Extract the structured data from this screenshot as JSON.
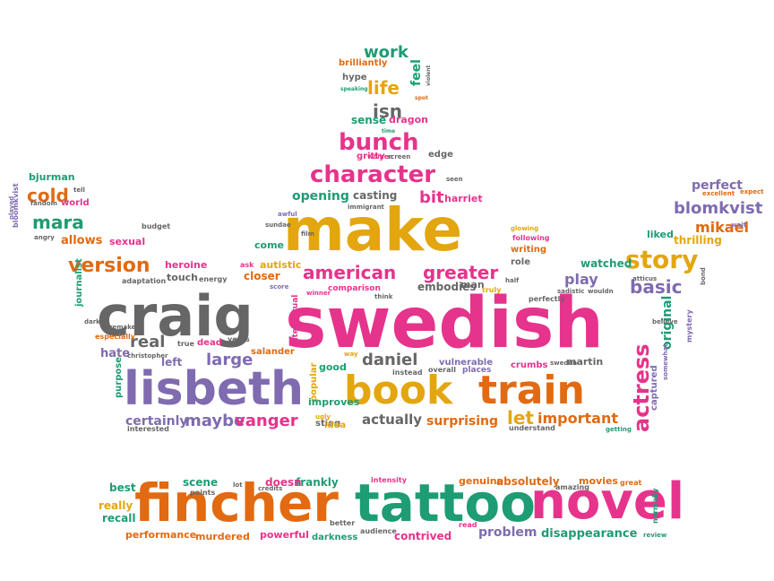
{
  "colors": {
    "pink": "#e6338c",
    "gold": "#e3a60f",
    "gray": "#666666",
    "purple": "#7f6bb0",
    "orange": "#e16a12",
    "teal": "#1e9c74",
    "background": "#ffffff"
  },
  "words": [
    {
      "text": "swedish",
      "color": "pink"
    },
    {
      "text": "craig",
      "color": "gray"
    },
    {
      "text": "make",
      "color": "gold"
    },
    {
      "text": "fincher",
      "color": "orange"
    },
    {
      "text": "tattoo",
      "color": "teal"
    },
    {
      "text": "novel",
      "color": "pink"
    },
    {
      "text": "book",
      "color": "gold"
    },
    {
      "text": "train",
      "color": "orange"
    },
    {
      "text": "lisbeth",
      "color": "purple"
    },
    {
      "text": "character",
      "color": "pink"
    },
    {
      "text": "bunch",
      "color": "pink"
    },
    {
      "text": "american",
      "color": "pink"
    },
    {
      "text": "greater",
      "color": "pink"
    },
    {
      "text": "version",
      "color": "orange"
    },
    {
      "text": "story",
      "color": "gold"
    },
    {
      "text": "actress",
      "color": "pink"
    },
    {
      "text": "basic",
      "color": "purple"
    },
    {
      "text": "blomkvist",
      "color": "purple"
    },
    {
      "text": "mikael",
      "color": "orange"
    },
    {
      "text": "cold",
      "color": "orange"
    },
    {
      "text": "mara",
      "color": "teal"
    },
    {
      "text": "work",
      "color": "teal"
    },
    {
      "text": "life",
      "color": "gold"
    },
    {
      "text": "isn",
      "color": "gray"
    },
    {
      "text": "bit",
      "color": "pink"
    },
    {
      "text": "opening",
      "color": "teal"
    },
    {
      "text": "casting",
      "color": "gray"
    },
    {
      "text": "daniel",
      "color": "gray"
    },
    {
      "text": "real",
      "color": "gray"
    },
    {
      "text": "large",
      "color": "purple"
    },
    {
      "text": "maybe",
      "color": "purple"
    },
    {
      "text": "vanger",
      "color": "pink"
    },
    {
      "text": "certainly",
      "color": "purple"
    },
    {
      "text": "actually",
      "color": "gray"
    },
    {
      "text": "surprising",
      "color": "orange"
    },
    {
      "text": "let",
      "color": "gold"
    },
    {
      "text": "important",
      "color": "orange"
    },
    {
      "text": "original",
      "color": "teal"
    },
    {
      "text": "play",
      "color": "purple"
    },
    {
      "text": "watched",
      "color": "teal"
    },
    {
      "text": "perfect",
      "color": "purple"
    },
    {
      "text": "liked",
      "color": "teal"
    },
    {
      "text": "thrilling",
      "color": "gold"
    },
    {
      "text": "scene",
      "color": "teal"
    },
    {
      "text": "frankly",
      "color": "teal"
    },
    {
      "text": "doesn",
      "color": "pink"
    },
    {
      "text": "absolutely",
      "color": "orange"
    },
    {
      "text": "genuine",
      "color": "orange"
    },
    {
      "text": "movies",
      "color": "orange"
    },
    {
      "text": "best",
      "color": "teal"
    },
    {
      "text": "really",
      "color": "gold"
    },
    {
      "text": "recall",
      "color": "teal"
    },
    {
      "text": "performance",
      "color": "orange"
    },
    {
      "text": "murdered",
      "color": "orange"
    },
    {
      "text": "powerful",
      "color": "pink"
    },
    {
      "text": "darkness",
      "color": "teal"
    },
    {
      "text": "contrived",
      "color": "pink"
    },
    {
      "text": "problem",
      "color": "purple"
    },
    {
      "text": "disappearance",
      "color": "teal"
    },
    {
      "text": "allows",
      "color": "orange"
    },
    {
      "text": "sexual",
      "color": "pink"
    },
    {
      "text": "bjurman",
      "color": "teal"
    },
    {
      "text": "world",
      "color": "pink"
    },
    {
      "text": "brilliantly",
      "color": "orange"
    },
    {
      "text": "hype",
      "color": "gray"
    },
    {
      "text": "feel",
      "color": "teal"
    },
    {
      "text": "sense",
      "color": "teal"
    },
    {
      "text": "dragon",
      "color": "pink"
    },
    {
      "text": "edge",
      "color": "gray"
    },
    {
      "text": "gritty",
      "color": "pink"
    },
    {
      "text": "harriet",
      "color": "pink"
    },
    {
      "text": "autistic",
      "color": "gold"
    },
    {
      "text": "come",
      "color": "teal"
    },
    {
      "text": "closer",
      "color": "orange"
    },
    {
      "text": "heroine",
      "color": "pink"
    },
    {
      "text": "touch",
      "color": "gray"
    },
    {
      "text": "embodies",
      "color": "gray"
    },
    {
      "text": "man",
      "color": "gray"
    },
    {
      "text": "writing",
      "color": "orange"
    },
    {
      "text": "role",
      "color": "gray"
    },
    {
      "text": "comparison",
      "color": "pink"
    },
    {
      "text": "vulnerable",
      "color": "purple"
    },
    {
      "text": "places",
      "color": "purple"
    },
    {
      "text": "crumbs",
      "color": "pink"
    },
    {
      "text": "martin",
      "color": "gray"
    },
    {
      "text": "good",
      "color": "teal"
    },
    {
      "text": "hate",
      "color": "purple"
    },
    {
      "text": "left",
      "color": "purple"
    },
    {
      "text": "dead",
      "color": "pink"
    },
    {
      "text": "journalist",
      "color": "teal"
    },
    {
      "text": "salander",
      "color": "orange"
    },
    {
      "text": "popular",
      "color": "gold"
    },
    {
      "text": "improves",
      "color": "teal"
    },
    {
      "text": "stieg",
      "color": "gray"
    },
    {
      "text": "idea",
      "color": "gold"
    },
    {
      "text": "captured",
      "color": "purple"
    },
    {
      "text": "intellectual",
      "color": "pink"
    },
    {
      "text": "purpose",
      "color": "teal"
    },
    {
      "text": "points",
      "color": "gray"
    },
    {
      "text": "better",
      "color": "gray"
    },
    {
      "text": "audience",
      "color": "gray"
    },
    {
      "text": "read",
      "color": "pink"
    },
    {
      "text": "intensity",
      "color": "pink"
    },
    {
      "text": "amazing",
      "color": "gray"
    },
    {
      "text": "great",
      "color": "orange"
    },
    {
      "text": "normally",
      "color": "teal"
    },
    {
      "text": "remake",
      "color": "gray"
    },
    {
      "text": "understand",
      "color": "gray"
    },
    {
      "text": "interested",
      "color": "gray"
    },
    {
      "text": "instead",
      "color": "gray"
    },
    {
      "text": "overall",
      "color": "gray"
    },
    {
      "text": "sweden",
      "color": "gray"
    },
    {
      "text": "perfectly",
      "color": "gray"
    },
    {
      "text": "sadistic",
      "color": "gray"
    },
    {
      "text": "wouldn",
      "color": "gray"
    },
    {
      "text": "truly",
      "color": "gold"
    },
    {
      "text": "think",
      "color": "gray"
    },
    {
      "text": "winner",
      "color": "pink"
    },
    {
      "text": "adaptation",
      "color": "gray"
    },
    {
      "text": "especially",
      "color": "orange"
    },
    {
      "text": "christopher",
      "color": "gray"
    },
    {
      "text": "energy",
      "color": "gray"
    },
    {
      "text": "ask",
      "color": "pink"
    },
    {
      "text": "years",
      "color": "gray"
    },
    {
      "text": "true",
      "color": "gray"
    },
    {
      "text": "budget",
      "color": "gray"
    },
    {
      "text": "following",
      "color": "pink"
    },
    {
      "text": "glowing",
      "color": "gold"
    },
    {
      "text": "immigrant",
      "color": "gray"
    },
    {
      "text": "excellent",
      "color": "orange"
    },
    {
      "text": "angry",
      "color": "gray"
    },
    {
      "text": "bloomkvist",
      "color": "purple"
    },
    {
      "text": "played",
      "color": "purple"
    },
    {
      "text": "tell",
      "color": "gray"
    },
    {
      "text": "fandom",
      "color": "gray"
    },
    {
      "text": "dark",
      "color": "gray"
    },
    {
      "text": "score",
      "color": "purple"
    },
    {
      "text": "half",
      "color": "gray"
    },
    {
      "text": "violent",
      "color": "gray"
    },
    {
      "text": "spot",
      "color": "orange"
    },
    {
      "text": "speaking",
      "color": "teal"
    },
    {
      "text": "time",
      "color": "teal"
    },
    {
      "text": "awful",
      "color": "purple"
    },
    {
      "text": "women",
      "color": "pink"
    },
    {
      "text": "screen",
      "color": "gray"
    },
    {
      "text": "seen",
      "color": "gray"
    },
    {
      "text": "sundae",
      "color": "gray"
    },
    {
      "text": "credits",
      "color": "gray"
    },
    {
      "text": "review",
      "color": "teal"
    },
    {
      "text": "atticus",
      "color": "gray"
    },
    {
      "text": "believe",
      "color": "gray"
    },
    {
      "text": "mystery",
      "color": "purple"
    },
    {
      "text": "somewhat",
      "color": "purple"
    },
    {
      "text": "getting",
      "color": "teal"
    },
    {
      "text": "wait",
      "color": "purple"
    },
    {
      "text": "bond",
      "color": "gray"
    },
    {
      "text": "expect",
      "color": "orange"
    },
    {
      "text": "lot",
      "color": "gray"
    },
    {
      "text": "film",
      "color": "gray"
    },
    {
      "text": "way",
      "color": "gold"
    },
    {
      "text": "ugly",
      "color": "gold"
    }
  ]
}
